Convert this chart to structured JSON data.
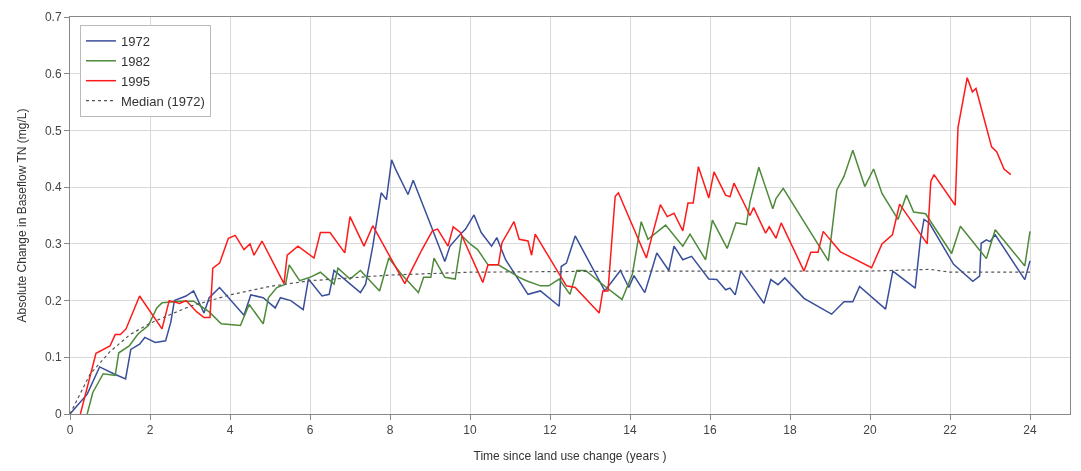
{
  "chart_data": {
    "type": "line",
    "xlabel": "Time since land use change (years )",
    "ylabel": "Absolute Change in Baseflow TN (mg/L)",
    "xlim": [
      0,
      25
    ],
    "xticks": [
      0,
      2,
      4,
      6,
      8,
      10,
      12,
      14,
      16,
      18,
      20,
      22,
      24
    ],
    "ylim": [
      0,
      0.7
    ],
    "yticks": [
      0,
      0.1,
      0.2,
      0.3,
      0.4,
      0.5,
      0.6,
      0.7
    ],
    "grid": true,
    "legend": "top left",
    "marker": "none",
    "series": [
      {
        "name": "1972",
        "color": "#3a4f9a",
        "line_style": "solid",
        "x": [
          0,
          0.43,
          0.74,
          1.09,
          1.39,
          1.52,
          1.74,
          1.87,
          2.13,
          2.39,
          2.52,
          2.61,
          2.9,
          3.09,
          3.35,
          3.48,
          3.74,
          4.35,
          4.52,
          4.83,
          5.13,
          5.26,
          5.52,
          5.83,
          5.96,
          6.3,
          6.48,
          6.6,
          7.26,
          7.39,
          7.57,
          7.78,
          7.91,
          8.04,
          8.15,
          8.45,
          8.58,
          8.97,
          9.37,
          9.5,
          9.76,
          9.89,
          10.1,
          10.28,
          10.54,
          10.67,
          10.89,
          11.45,
          11.76,
          12.23,
          12.28,
          12.41,
          12.63,
          13.37,
          13.76,
          13.97,
          14.1,
          14.37,
          14.54,
          14.67,
          14.97,
          15.1,
          15.32,
          15.54,
          15.97,
          16.17,
          16.39,
          16.5,
          16.63,
          16.77,
          17.35,
          17.52,
          17.7,
          17.87,
          18.35,
          19.04,
          19.35,
          19.57,
          19.74,
          20.39,
          20.57,
          21.13,
          21.26,
          21.35,
          21.48,
          22.09,
          22.57,
          22.74,
          22.78,
          22.91,
          23.0,
          23.13,
          23.87,
          24.0
        ],
        "values": [
          0,
          0.035,
          0.083,
          0.071,
          0.062,
          0.114,
          0.123,
          0.135,
          0.126,
          0.129,
          0.162,
          0.2,
          0.208,
          0.217,
          0.178,
          0.205,
          0.223,
          0.174,
          0.21,
          0.205,
          0.187,
          0.205,
          0.2,
          0.184,
          0.238,
          0.208,
          0.211,
          0.253,
          0.214,
          0.229,
          0.296,
          0.39,
          0.378,
          0.448,
          0.43,
          0.387,
          0.412,
          0.342,
          0.269,
          0.296,
          0.317,
          0.326,
          0.351,
          0.32,
          0.296,
          0.311,
          0.272,
          0.211,
          0.217,
          0.19,
          0.26,
          0.266,
          0.314,
          0.217,
          0.253,
          0.223,
          0.244,
          0.214,
          0.253,
          0.284,
          0.253,
          0.296,
          0.272,
          0.278,
          0.238,
          0.237,
          0.219,
          0.222,
          0.21,
          0.252,
          0.195,
          0.237,
          0.228,
          0.24,
          0.204,
          0.176,
          0.198,
          0.198,
          0.225,
          0.185,
          0.252,
          0.222,
          0.307,
          0.343,
          0.337,
          0.264,
          0.234,
          0.243,
          0.301,
          0.307,
          0.304,
          0.316,
          0.237,
          0.27
        ]
      },
      {
        "name": "1982",
        "color": "#4e8a3a",
        "line_style": "solid",
        "x": [
          0.43,
          0.57,
          0.83,
          1.13,
          1.22,
          1.48,
          1.7,
          1.96,
          2.17,
          2.3,
          2.74,
          3.09,
          3.48,
          3.78,
          4.26,
          4.48,
          4.83,
          4.96,
          5.17,
          5.39,
          5.48,
          5.74,
          6.0,
          6.26,
          6.6,
          6.7,
          7.0,
          7.26,
          7.74,
          7.97,
          8.28,
          8.71,
          8.84,
          9.02,
          9.1,
          9.37,
          9.63,
          9.8,
          10.02,
          10.19,
          10.45,
          10.71,
          11.23,
          11.41,
          11.76,
          11.97,
          12.23,
          12.5,
          12.67,
          12.89,
          13.41,
          13.8,
          14.06,
          14.28,
          14.45,
          14.89,
          15.32,
          15.5,
          15.89,
          16.06,
          16.43,
          16.65,
          16.91,
          17.0,
          17.22,
          17.57,
          17.65,
          17.83,
          18.96,
          19.17,
          19.35,
          19.57,
          19.87,
          20.09,
          20.3,
          20.7,
          20.91,
          21.09,
          21.39,
          22.04,
          22.26,
          22.91,
          23.13,
          23.87,
          24.0
        ],
        "values": [
          0,
          0.038,
          0.071,
          0.068,
          0.108,
          0.12,
          0.141,
          0.156,
          0.187,
          0.196,
          0.199,
          0.199,
          0.18,
          0.159,
          0.156,
          0.193,
          0.159,
          0.205,
          0.223,
          0.229,
          0.263,
          0.235,
          0.241,
          0.25,
          0.229,
          0.257,
          0.238,
          0.253,
          0.217,
          0.275,
          0.247,
          0.214,
          0.241,
          0.241,
          0.275,
          0.241,
          0.238,
          0.314,
          0.299,
          0.29,
          0.263,
          0.263,
          0.241,
          0.235,
          0.226,
          0.226,
          0.238,
          0.211,
          0.253,
          0.253,
          0.223,
          0.202,
          0.247,
          0.339,
          0.308,
          0.333,
          0.296,
          0.317,
          0.272,
          0.342,
          0.292,
          0.337,
          0.334,
          0.374,
          0.435,
          0.362,
          0.38,
          0.398,
          0.27,
          0.395,
          0.419,
          0.465,
          0.401,
          0.432,
          0.389,
          0.343,
          0.386,
          0.356,
          0.353,
          0.283,
          0.331,
          0.274,
          0.325,
          0.261,
          0.322
        ]
      },
      {
        "name": "1995",
        "color": "#ff1a1a",
        "line_style": "solid",
        "x": [
          0.26,
          0.65,
          1.0,
          1.13,
          1.26,
          1.4,
          1.74,
          2.3,
          2.48,
          2.74,
          2.9,
          3.17,
          3.35,
          3.5,
          3.57,
          3.74,
          3.96,
          4.13,
          4.35,
          4.5,
          4.6,
          4.8,
          5.35,
          5.43,
          5.7,
          6.1,
          6.26,
          6.5,
          6.87,
          7.0,
          7.35,
          7.57,
          8.37,
          8.8,
          9.06,
          9.19,
          9.45,
          9.58,
          9.76,
          10.32,
          10.45,
          10.71,
          10.8,
          11.1,
          11.23,
          11.45,
          11.54,
          11.63,
          12.41,
          12.63,
          13.23,
          13.32,
          13.45,
          13.63,
          13.71,
          14.41,
          14.54,
          14.76,
          14.93,
          15.1,
          15.32,
          15.45,
          15.58,
          15.71,
          15.97,
          16.1,
          16.39,
          16.5,
          16.6,
          17.0,
          17.09,
          17.39,
          17.48,
          17.65,
          17.78,
          18.35,
          18.52,
          18.7,
          18.83,
          19.26,
          20.04,
          20.3,
          20.56,
          20.74,
          21.43,
          21.52,
          21.6,
          22.13,
          22.2,
          22.43,
          22.56,
          22.65,
          23.04,
          23.17,
          23.35,
          23.52
        ],
        "values": [
          0,
          0.107,
          0.12,
          0.14,
          0.14,
          0.15,
          0.208,
          0.15,
          0.2,
          0.195,
          0.2,
          0.18,
          0.17,
          0.17,
          0.257,
          0.266,
          0.31,
          0.315,
          0.29,
          0.3,
          0.28,
          0.305,
          0.23,
          0.28,
          0.296,
          0.275,
          0.32,
          0.32,
          0.284,
          0.348,
          0.296,
          0.332,
          0.23,
          0.29,
          0.323,
          0.326,
          0.296,
          0.33,
          0.32,
          0.232,
          0.263,
          0.263,
          0.302,
          0.339,
          0.308,
          0.305,
          0.28,
          0.317,
          0.226,
          0.223,
          0.178,
          0.217,
          0.217,
          0.384,
          0.39,
          0.275,
          0.311,
          0.369,
          0.348,
          0.354,
          0.323,
          0.372,
          0.372,
          0.436,
          0.381,
          0.427,
          0.386,
          0.383,
          0.407,
          0.35,
          0.364,
          0.319,
          0.33,
          0.31,
          0.337,
          0.252,
          0.285,
          0.285,
          0.322,
          0.286,
          0.258,
          0.3,
          0.316,
          0.37,
          0.3,
          0.41,
          0.422,
          0.368,
          0.505,
          0.593,
          0.568,
          0.574,
          0.471,
          0.462,
          0.432,
          0.422
        ]
      },
      {
        "name": "Median (1972)",
        "color": "#555555",
        "line_style": "dotted",
        "x": [
          0,
          0.5,
          1,
          1.5,
          2,
          3,
          4,
          5,
          6,
          7,
          8,
          10,
          14,
          20,
          21.5,
          22,
          24
        ],
        "values": [
          0,
          0.07,
          0.11,
          0.14,
          0.16,
          0.19,
          0.21,
          0.225,
          0.235,
          0.24,
          0.245,
          0.25,
          0.252,
          0.252,
          0.255,
          0.25,
          0.25
        ]
      }
    ]
  }
}
